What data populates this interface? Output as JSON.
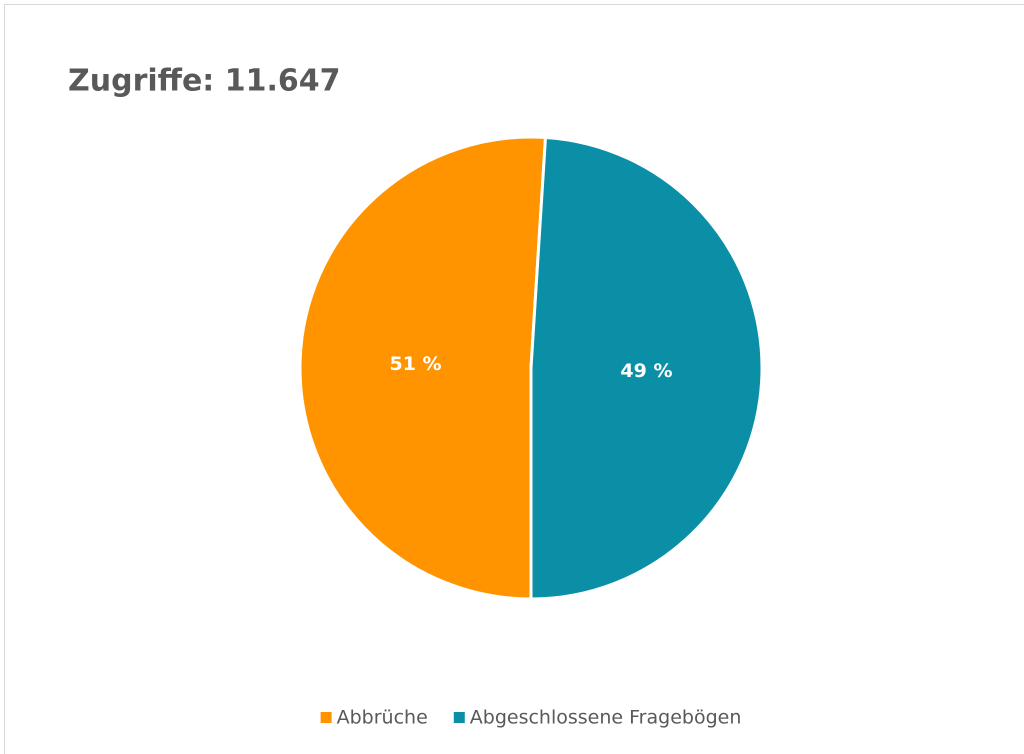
{
  "chart_data": {
    "type": "pie",
    "title": "Zugriffe: 11.647",
    "categories": [
      "Abbrüche",
      "Abgeschlossene Fragebögen"
    ],
    "values": [
      51,
      49
    ],
    "value_labels": [
      "51 %",
      "49 %"
    ],
    "colors": [
      "#ff9400",
      "#0a8fa6"
    ],
    "legend": "bottom"
  }
}
